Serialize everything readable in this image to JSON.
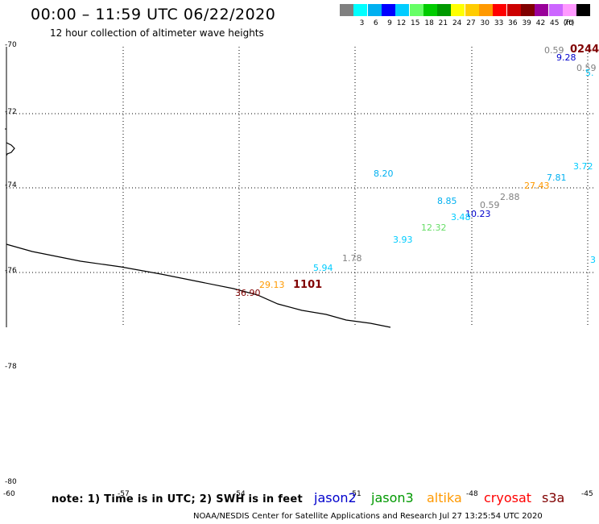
{
  "header": {
    "title": "00:00 – 11:59 UTC 06/22/2020",
    "subtitle": "12 hour collection of altimeter wave heights"
  },
  "legend": {
    "unit": "(ft)",
    "swatches": [
      {
        "color": "#808080",
        "label": ""
      },
      {
        "color": "#00ffff",
        "label": "3"
      },
      {
        "color": "#00b0f0",
        "label": "6"
      },
      {
        "color": "#0000ff",
        "label": "9"
      },
      {
        "color": "#00ccff",
        "label": "12"
      },
      {
        "color": "#66ff66",
        "label": "15"
      },
      {
        "color": "#00cc00",
        "label": "18"
      },
      {
        "color": "#009900",
        "label": "21"
      },
      {
        "color": "#ffff00",
        "label": "24"
      },
      {
        "color": "#ffcc00",
        "label": "27"
      },
      {
        "color": "#ff9900",
        "label": "30"
      },
      {
        "color": "#ff0000",
        "label": "33"
      },
      {
        "color": "#cc0000",
        "label": "36"
      },
      {
        "color": "#800000",
        "label": "39"
      },
      {
        "color": "#990099",
        "label": "42"
      },
      {
        "color": "#cc66ff",
        "label": "45"
      },
      {
        "color": "#ff99ff",
        "label": "70"
      },
      {
        "color": "#000000",
        "label": ""
      }
    ]
  },
  "map": {
    "lat_labels": [
      "-70",
      "-72",
      "-74",
      "-76",
      "-78",
      "-80",
      "-60"
    ],
    "lon_labels": [
      "-57",
      "-54",
      "-51",
      "-48",
      "-45"
    ]
  },
  "observations": [
    {
      "text": "0.59",
      "color": "#808080",
      "size": "normal"
    },
    {
      "text": "0244",
      "color": "#800000",
      "size": "big"
    },
    {
      "text": "9.28",
      "color": "#0000cc",
      "size": "normal"
    },
    {
      "text": "0.59",
      "color": "#808080",
      "size": "normal"
    },
    {
      "text": "5.",
      "color": "#00ccff",
      "size": "normal"
    },
    {
      "text": "3.72",
      "color": "#00ccff",
      "size": "normal"
    },
    {
      "text": "8.20",
      "color": "#00b0f0",
      "size": "normal"
    },
    {
      "text": "7.81",
      "color": "#00b0f0",
      "size": "normal"
    },
    {
      "text": "27.43",
      "color": "#ff9900",
      "size": "normal"
    },
    {
      "text": "2.88",
      "color": "#808080",
      "size": "normal"
    },
    {
      "text": "8.85",
      "color": "#00b0f0",
      "size": "normal"
    },
    {
      "text": "0.59",
      "color": "#808080",
      "size": "normal"
    },
    {
      "text": "10.23",
      "color": "#0000cc",
      "size": "normal"
    },
    {
      "text": "3.48",
      "color": "#00ccff",
      "size": "normal"
    },
    {
      "text": "12.32",
      "color": "#66dd66",
      "size": "normal"
    },
    {
      "text": "3.93",
      "color": "#00ccff",
      "size": "normal"
    },
    {
      "text": "1.78",
      "color": "#808080",
      "size": "normal"
    },
    {
      "text": "5.94",
      "color": "#00ccff",
      "size": "normal"
    },
    {
      "text": "3",
      "color": "#00ccff",
      "size": "normal"
    },
    {
      "text": "29.13",
      "color": "#ff9900",
      "size": "normal"
    },
    {
      "text": "1101",
      "color": "#800000",
      "size": "big"
    },
    {
      "text": "36.90",
      "color": "#800000",
      "size": "normal"
    }
  ],
  "footer": {
    "note": "note: 1) Time is in UTC; 2) SWH is in feet",
    "satellites": [
      {
        "name": "jason2",
        "color": "#0000cc"
      },
      {
        "name": "jason3",
        "color": "#009900"
      },
      {
        "name": "altika",
        "color": "#ff9900"
      },
      {
        "name": "cryosat",
        "color": "#ff0000"
      },
      {
        "name": "s3a",
        "color": "#800000"
      }
    ],
    "credit": "NOAA/NESDIS Center for Satellite Applications and Research    Jul 27 13:25:54 UTC 2020"
  }
}
